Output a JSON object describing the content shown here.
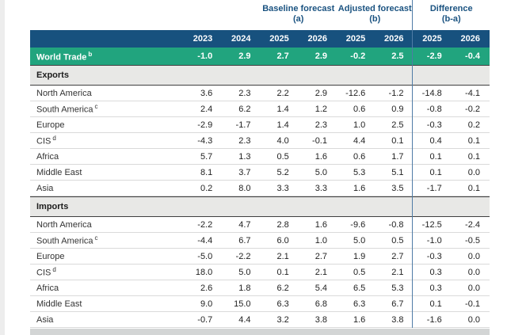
{
  "header": {
    "groups": [
      {
        "label": "Baseline forecast",
        "sub": "(a)"
      },
      {
        "label": "Adjusted forecast",
        "sub": "(b)"
      },
      {
        "label": "Difference",
        "sub": "(b-a)"
      }
    ],
    "years": [
      "2023",
      "2024",
      "2025",
      "2026",
      "2025",
      "2026",
      "2025",
      "2026"
    ]
  },
  "world_trade": {
    "label": "World Trade",
    "sup": "b",
    "values": [
      "-1.0",
      "2.9",
      "2.7",
      "2.9",
      "-0.2",
      "2.5",
      "-2.9",
      "-0.4"
    ]
  },
  "sections": [
    {
      "label": "Exports",
      "rows": [
        {
          "label": "North America",
          "sup": "",
          "values": [
            "3.6",
            "2.3",
            "2.2",
            "2.9",
            "-12.6",
            "-1.2",
            "-14.8",
            "-4.1"
          ]
        },
        {
          "label": "South America",
          "sup": "c",
          "values": [
            "2.4",
            "6.2",
            "1.4",
            "1.2",
            "0.6",
            "0.9",
            "-0.8",
            "-0.2"
          ]
        },
        {
          "label": "Europe",
          "sup": "",
          "values": [
            "-2.9",
            "-1.7",
            "1.4",
            "2.3",
            "1.0",
            "2.5",
            "-0.3",
            "0.2"
          ]
        },
        {
          "label": "CIS",
          "sup": "d",
          "values": [
            "-4.3",
            "2.3",
            "4.0",
            "-0.1",
            "4.4",
            "0.1",
            "0.4",
            "0.1"
          ]
        },
        {
          "label": "Africa",
          "sup": "",
          "values": [
            "5.7",
            "1.3",
            "0.5",
            "1.6",
            "0.6",
            "1.7",
            "0.1",
            "0.1"
          ]
        },
        {
          "label": "Middle East",
          "sup": "",
          "values": [
            "8.1",
            "3.7",
            "5.2",
            "5.0",
            "5.3",
            "5.1",
            "0.1",
            "0.0"
          ]
        },
        {
          "label": "Asia",
          "sup": "",
          "values": [
            "0.2",
            "8.0",
            "3.3",
            "3.3",
            "1.6",
            "3.5",
            "-1.7",
            "0.1"
          ]
        }
      ]
    },
    {
      "label": "Imports",
      "rows": [
        {
          "label": "North America",
          "sup": "",
          "values": [
            "-2.2",
            "4.7",
            "2.8",
            "1.6",
            "-9.6",
            "-0.8",
            "-12.5",
            "-2.4"
          ]
        },
        {
          "label": "South America",
          "sup": "c",
          "values": [
            "-4.4",
            "6.7",
            "6.0",
            "1.0",
            "5.0",
            "0.5",
            "-1.0",
            "-0.5"
          ]
        },
        {
          "label": "Europe",
          "sup": "",
          "values": [
            "-5.0",
            "-2.2",
            "2.1",
            "2.7",
            "1.9",
            "2.7",
            "-0.3",
            "0.0"
          ]
        },
        {
          "label": "CIS",
          "sup": "d",
          "values": [
            "18.0",
            "5.0",
            "0.1",
            "2.1",
            "0.5",
            "2.1",
            "0.3",
            "0.0"
          ]
        },
        {
          "label": "Africa",
          "sup": "",
          "values": [
            "2.6",
            "1.8",
            "6.2",
            "5.4",
            "6.5",
            "5.3",
            "0.3",
            "0.0"
          ]
        },
        {
          "label": "Middle East",
          "sup": "",
          "values": [
            "9.0",
            "15.0",
            "6.3",
            "6.8",
            "6.3",
            "6.7",
            "0.1",
            "-0.1"
          ]
        },
        {
          "label": "Asia",
          "sup": "",
          "values": [
            "-0.7",
            "4.4",
            "3.2",
            "3.8",
            "1.6",
            "3.8",
            "-1.6",
            "0.0"
          ]
        }
      ]
    }
  ],
  "colors": {
    "header_navy": "#17517E",
    "world_trade_green": "#21A47E",
    "group_label_blue": "#1B5381",
    "section_band_gray": "#E8E8E6",
    "separator_blue": "#4F7CA6",
    "row_divider": "#DADADA",
    "bottom_bar_gray": "#D3D5D5"
  }
}
